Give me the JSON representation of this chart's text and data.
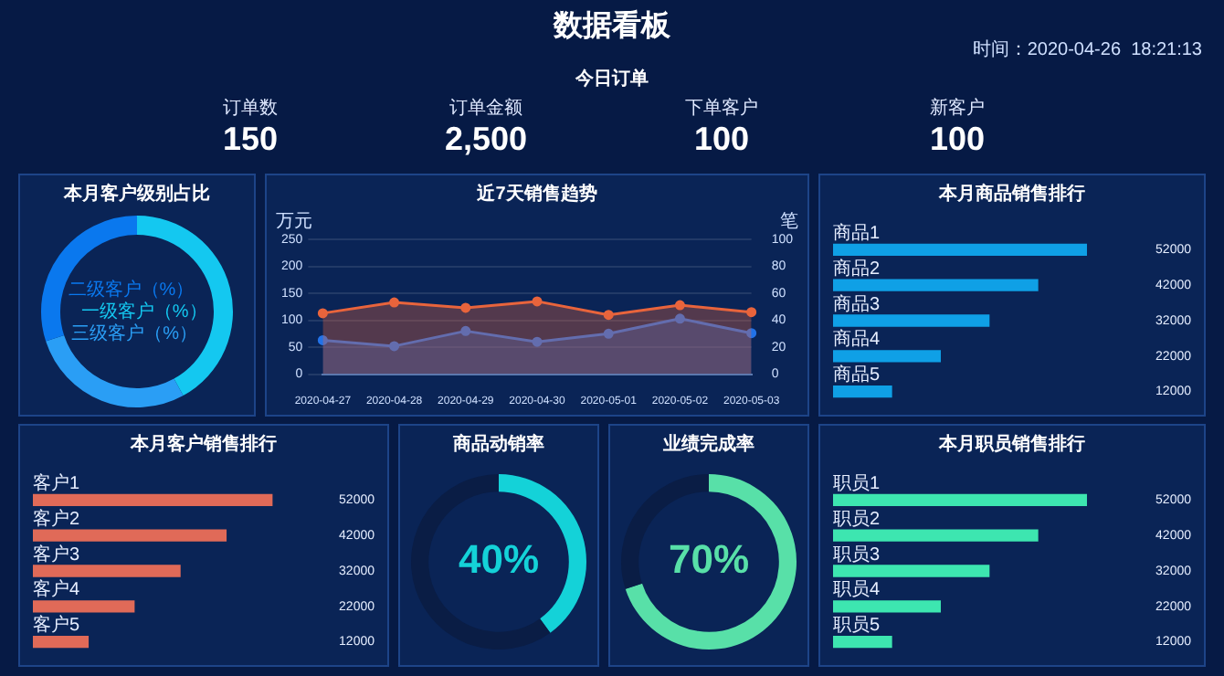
{
  "chart_data": [
    {
      "type": "other",
      "title": "数据看板",
      "subtitle": "今日订单",
      "annotations": [
        "时间：2020-04-26  18:21:13"
      ],
      "categories": [
        "订单数",
        "订单金额",
        "下单客户",
        "新客户"
      ],
      "value_labels": [
        "150",
        "2,500",
        "100",
        "100"
      ]
    },
    {
      "type": "donut",
      "title": "本月客户级别占比",
      "categories": [
        "一级客户（%）",
        "三级客户（%）",
        "二级客户（%）"
      ],
      "values": [
        42,
        28,
        30
      ],
      "colors": [
        "#14c8f0",
        "#2a9ef5",
        "#0a78ee"
      ]
    },
    {
      "type": "area",
      "title": "近7天销售趋势",
      "ylabel": "万元",
      "y2label": "笔",
      "categories": [
        "2020-04-27",
        "2020-04-28",
        "2020-04-29",
        "2020-04-30",
        "2020-05-01",
        "2020-05-02",
        "2020-05-03"
      ],
      "series": [
        {
          "color": "#e8643c",
          "values": [
            113,
            133,
            123,
            135,
            110,
            128,
            115
          ]
        },
        {
          "color": "#2272e8",
          "values": [
            63,
            52,
            80,
            60,
            75,
            103,
            76
          ]
        }
      ],
      "ylim": [
        0,
        250
      ],
      "yticks": [
        0,
        50,
        100,
        150,
        200,
        250
      ],
      "y2lim": [
        0,
        100
      ],
      "y2ticks": [
        0,
        20,
        40,
        60,
        80,
        100
      ],
      "grid": "y",
      "marker": "circle"
    },
    {
      "type": "bar",
      "orientation": "horizontal",
      "title": "本月商品销售排行",
      "categories": [
        "商品1",
        "商品2",
        "商品3",
        "商品4",
        "商品5"
      ],
      "values": [
        52000,
        42000,
        32000,
        22000,
        12000
      ],
      "color": "#0fa0e6",
      "data_labels": true
    },
    {
      "type": "bar",
      "orientation": "horizontal",
      "title": "本月客户销售排行",
      "categories": [
        "客户1",
        "客户2",
        "客户3",
        "客户4",
        "客户5"
      ],
      "values": [
        52000,
        42000,
        32000,
        22000,
        12000
      ],
      "color": "#e06a58",
      "data_labels": true
    },
    {
      "type": "donut",
      "title": "商品动销率",
      "categories": [
        null,
        null
      ],
      "values": [
        40,
        60
      ],
      "colors": [
        "#14d2d8",
        "#0a1d45"
      ],
      "annotations": [
        "40%"
      ]
    },
    {
      "type": "donut",
      "title": "业绩完成率",
      "categories": [
        null,
        null
      ],
      "values": [
        70,
        30
      ],
      "colors": [
        "#58e0a8",
        "#0a1d45"
      ],
      "annotations": [
        "70%"
      ]
    },
    {
      "type": "bar",
      "orientation": "horizontal",
      "title": "本月职员销售排行",
      "categories": [
        "职员1",
        "职员2",
        "职员3",
        "职员4",
        "职员5"
      ],
      "values": [
        52000,
        42000,
        32000,
        22000,
        12000
      ],
      "color": "#3de6b0",
      "data_labels": true
    }
  ]
}
